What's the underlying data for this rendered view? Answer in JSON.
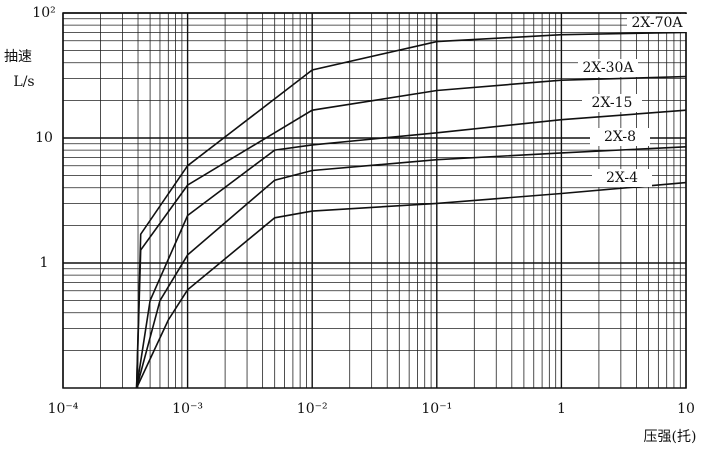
{
  "chart_data": {
    "type": "line",
    "ylabel": [
      "抽速",
      "L/s"
    ],
    "xlabel": "压强(托)",
    "xscale": "log",
    "yscale": "log",
    "grid": "log-minor",
    "color": "#111111",
    "xlim": [
      0.0001,
      10
    ],
    "ylim": [
      0.1,
      100
    ],
    "xticks": [
      {
        "value": 0.0001,
        "label": "10⁻⁴"
      },
      {
        "value": 0.001,
        "label": "10⁻³"
      },
      {
        "value": 0.01,
        "label": "10⁻²"
      },
      {
        "value": 0.1,
        "label": "10⁻¹"
      },
      1,
      10
    ],
    "yticks": [
      1,
      10,
      {
        "value": 100,
        "label": "10²"
      }
    ],
    "series": [
      {
        "name": "2X-70A",
        "color": "#111111",
        "x": [
          0.00039,
          0.00042,
          0.001,
          0.01,
          0.1,
          1,
          10
        ],
        "values": [
          0.1,
          1.7,
          6,
          35,
          59,
          67,
          70
        ]
      },
      {
        "name": "2X-30A",
        "color": "#111111",
        "x": [
          0.00039,
          0.00042,
          0.001,
          0.01,
          0.1,
          1,
          10
        ],
        "values": [
          0.1,
          1.27,
          4.2,
          16.7,
          24,
          29,
          31
        ]
      },
      {
        "name": "2X-15",
        "color": "#111111",
        "x": [
          0.00039,
          0.0005,
          0.001,
          0.005,
          0.01,
          0.1,
          1,
          10
        ],
        "values": [
          0.1,
          0.5,
          2.4,
          8,
          8.8,
          11,
          14,
          16.7
        ]
      },
      {
        "name": "2X-8",
        "color": "#111111",
        "x": [
          0.00039,
          0.0006,
          0.001,
          0.005,
          0.01,
          0.1,
          1,
          10
        ],
        "values": [
          0.1,
          0.5,
          1.16,
          4.6,
          5.5,
          6.7,
          7.6,
          8.5
        ]
      },
      {
        "name": "2X-4",
        "color": "#111111",
        "x": [
          0.00039,
          0.0007,
          0.001,
          0.005,
          0.01,
          0.1,
          1,
          10
        ],
        "values": [
          0.1,
          0.35,
          0.61,
          2.3,
          2.6,
          3.0,
          3.6,
          4.4
        ]
      }
    ]
  }
}
